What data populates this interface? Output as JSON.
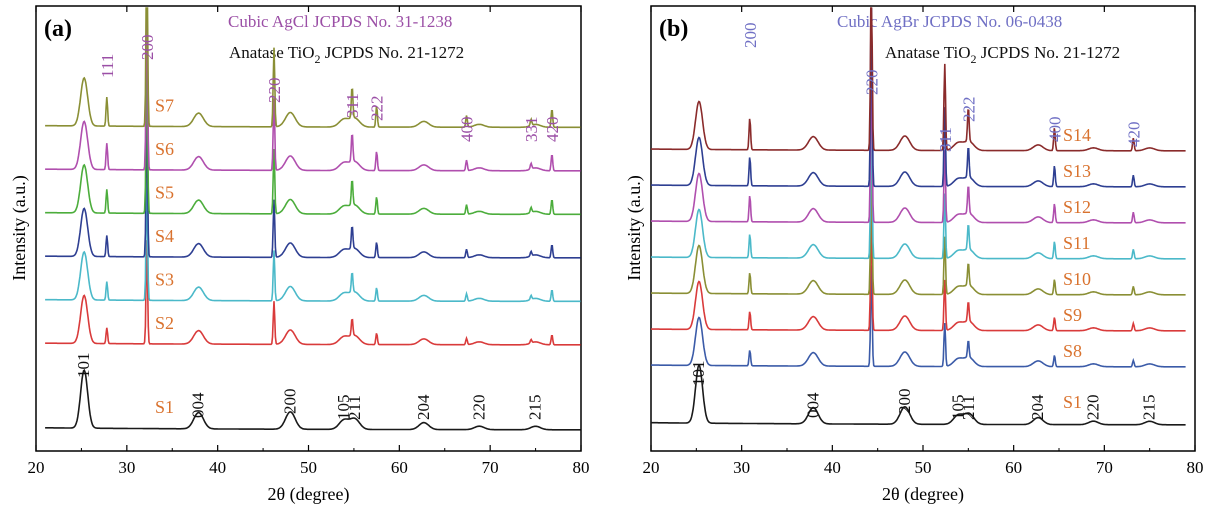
{
  "figure": {
    "x_axis_label": "2θ (degree)",
    "y_axis_label": "Intensity (a.u.)"
  },
  "chart_data": [
    {
      "type": "line",
      "panel_label": "(a)",
      "xlabel": "2θ (degree)",
      "ylabel": "Intensity (a.u.)",
      "xlim": [
        20,
        80
      ],
      "x_ticks": [
        "20",
        "30",
        "40",
        "50",
        "60",
        "70",
        "80"
      ],
      "y_ticks": [],
      "grid": false,
      "reference_cards": [
        {
          "text": "Cubic AgCl JCPDS No. 31-1238",
          "color": "#9b4fa6"
        },
        {
          "text_main": "Anatase TiO",
          "text_sub": "2",
          "text_tail": " JCPDS No. 21-1272",
          "color": "#111111"
        }
      ],
      "colors": {
        "axis": "#000000",
        "series_label": "#d9722e",
        "silver_halide_index": "#9b4fa6",
        "anatase_index": "#111111"
      },
      "series": [
        {
          "name": "S1",
          "color": "#1a1a1a",
          "offset": 0
        },
        {
          "name": "S2",
          "color": "#d93b3b",
          "offset": 1
        },
        {
          "name": "S3",
          "color": "#4bb9c9",
          "offset": 2
        },
        {
          "name": "S4",
          "color": "#2e3f92",
          "offset": 3
        },
        {
          "name": "S5",
          "color": "#4cad3c",
          "offset": 4
        },
        {
          "name": "S6",
          "color": "#b04fae",
          "offset": 5
        },
        {
          "name": "S7",
          "color": "#8a8f35",
          "offset": 6
        }
      ],
      "anatase_peaks": [
        {
          "x": 25.3,
          "label": "101"
        },
        {
          "x": 37.9,
          "label": "004"
        },
        {
          "x": 48.0,
          "label": "200"
        },
        {
          "x": 53.9,
          "label": "105"
        },
        {
          "x": 55.1,
          "label": "211"
        },
        {
          "x": 62.7,
          "label": "204"
        },
        {
          "x": 68.8,
          "label": "220"
        },
        {
          "x": 75.0,
          "label": "215"
        }
      ],
      "halide_peaks": [
        {
          "x": 27.8,
          "label": "111"
        },
        {
          "x": 32.2,
          "label": "200"
        },
        {
          "x": 46.2,
          "label": "220"
        },
        {
          "x": 54.8,
          "label": "311"
        },
        {
          "x": 57.5,
          "label": "222"
        },
        {
          "x": 67.4,
          "label": "400"
        },
        {
          "x": 74.5,
          "label": "331"
        },
        {
          "x": 76.8,
          "label": "420"
        }
      ]
    },
    {
      "type": "line",
      "panel_label": "(b)",
      "xlabel": "2θ (degree)",
      "ylabel": "Intensity (a.u.)",
      "xlim": [
        20,
        80
      ],
      "x_ticks": [
        "20",
        "30",
        "40",
        "50",
        "60",
        "70",
        "80"
      ],
      "y_ticks": [],
      "grid": false,
      "reference_cards": [
        {
          "text": "Cubic AgBr JCPDS No. 06-0438",
          "color": "#6f6fc4"
        },
        {
          "text_main": "Anatase TiO",
          "text_sub": "2",
          "text_tail": " JCPDS No. 21-1272",
          "color": "#111111"
        }
      ],
      "colors": {
        "axis": "#000000",
        "series_label": "#d9722e",
        "silver_halide_index": "#6f6fc4",
        "anatase_index": "#111111"
      },
      "series": [
        {
          "name": "S1",
          "color": "#1a1a1a",
          "offset": 0
        },
        {
          "name": "S8",
          "color": "#3b5ba8",
          "offset": 1
        },
        {
          "name": "S9",
          "color": "#d93b3b",
          "offset": 2
        },
        {
          "name": "S10",
          "color": "#8a8f35",
          "offset": 3
        },
        {
          "name": "S11",
          "color": "#4bb9c9",
          "offset": 4
        },
        {
          "name": "S12",
          "color": "#b04fae",
          "offset": 5
        },
        {
          "name": "S13",
          "color": "#2e3f92",
          "offset": 6
        },
        {
          "name": "S14",
          "color": "#8a2b2b",
          "offset": 7
        }
      ],
      "anatase_peaks": [
        {
          "x": 25.3,
          "label": "101"
        },
        {
          "x": 37.9,
          "label": "004"
        },
        {
          "x": 48.0,
          "label": "200"
        },
        {
          "x": 53.9,
          "label": "105"
        },
        {
          "x": 55.1,
          "label": "211"
        },
        {
          "x": 62.7,
          "label": "204"
        },
        {
          "x": 68.8,
          "label": "220"
        },
        {
          "x": 75.0,
          "label": "215"
        }
      ],
      "halide_peaks": [
        {
          "x": 30.9,
          "label": "200"
        },
        {
          "x": 44.3,
          "label": "220"
        },
        {
          "x": 52.4,
          "label": "311"
        },
        {
          "x": 55.0,
          "label": "222"
        },
        {
          "x": 64.5,
          "label": "400"
        },
        {
          "x": 73.2,
          "label": "420"
        }
      ]
    }
  ]
}
